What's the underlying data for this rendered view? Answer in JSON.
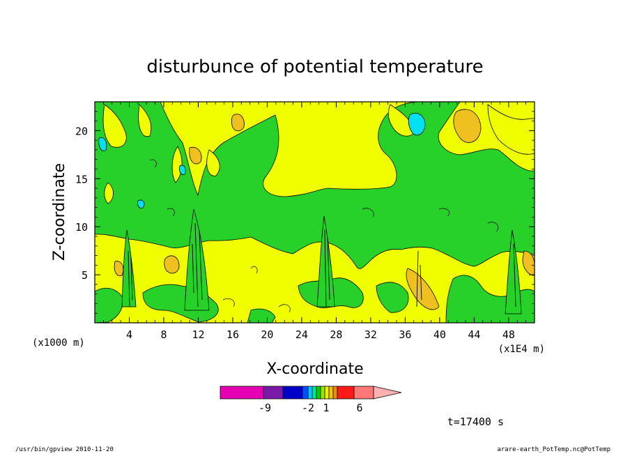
{
  "chart_data": {
    "type": "heatmap",
    "title": "disturbunce of potential temperature",
    "xlabel": "X-coordinate",
    "ylabel": "Z-coordinate",
    "x_unit_left": "(x1000 m)",
    "x_unit_right": "(x1E4 m)",
    "xlim": [
      0,
      51
    ],
    "ylim": [
      0,
      23
    ],
    "x_ticks": [
      4,
      8,
      12,
      16,
      20,
      24,
      28,
      32,
      36,
      40,
      44,
      48
    ],
    "y_ticks": [
      5,
      10,
      15,
      20
    ],
    "time_label": "t=17400 s",
    "colorbar": {
      "colors": [
        "#e600b4",
        "#7a1aa8",
        "#0000c8",
        "#0050ff",
        "#00c8ff",
        "#00e0a0",
        "#00d000",
        "#9ee600",
        "#f0f000",
        "#f0c800",
        "#f08c00",
        "#ff1a1a",
        "#ff7878",
        "#ffb0b0"
      ],
      "tick_labels": [
        "-9",
        "-2",
        "1",
        "6"
      ]
    },
    "field_colors": {
      "background": "#f0ff00",
      "green": "#28d02a",
      "orange": "#f0c020",
      "cyan": "#00e0f0"
    }
  },
  "footer": {
    "left": "/usr/bin/gpview  2010-11-20",
    "right": "arare-earth_PotTemp.nc@PotTemp"
  }
}
